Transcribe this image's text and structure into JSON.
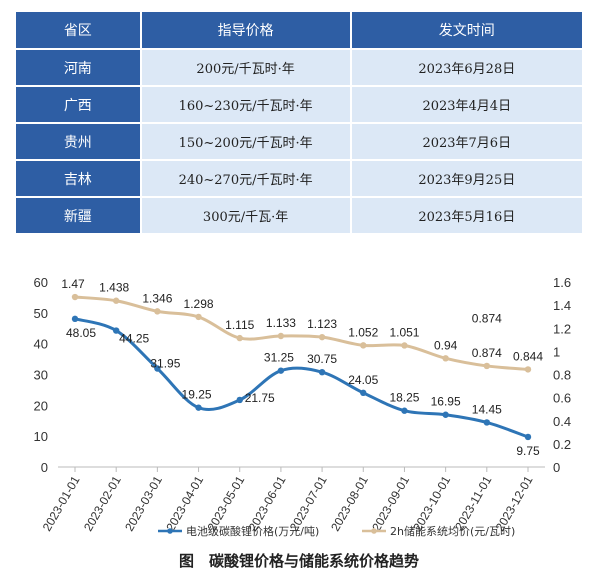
{
  "table": {
    "headers": [
      "省区",
      "指导价格",
      "发文时间"
    ],
    "rows": [
      {
        "province": "河南",
        "price": "200元/千瓦时·年",
        "date": "2023年6月28日"
      },
      {
        "province": "广西",
        "price": "160~230元/千瓦时·年",
        "date": "2023年4月4日"
      },
      {
        "province": "贵州",
        "price": "150~200元/千瓦时·年",
        "date": "2023年7月6日"
      },
      {
        "province": "吉林",
        "price": "240~270元/千瓦时·年",
        "date": "2023年9月25日"
      },
      {
        "province": "新疆",
        "price": "300元/千瓦·年",
        "date": "2023年5月16日"
      }
    ]
  },
  "chart_data": {
    "type": "line",
    "title": "",
    "x": [
      "2023-01-01",
      "2023-02-01",
      "2023-03-01",
      "2023-04-01",
      "2023-05-01",
      "2023-06-01",
      "2023-07-01",
      "2023-08-01",
      "2023-09-01",
      "2023-10-01",
      "2023-11-01",
      "2023-12-01"
    ],
    "y_left": {
      "range": [
        0,
        60
      ],
      "ticks": [
        "0",
        "10",
        "20",
        "30",
        "40",
        "50",
        "60"
      ]
    },
    "y_right": {
      "range": [
        0,
        1.6
      ],
      "ticks": [
        "0",
        "0.2",
        "0.4",
        "0.6",
        "0.8",
        "1",
        "1.2",
        "1.4",
        "1.6"
      ]
    },
    "series": [
      {
        "name": "电池级碳酸锂价格(万元/吨)",
        "axis": "left",
        "color": "#2e75b6",
        "values": [
          48.05,
          44.25,
          31.95,
          19.25,
          21.75,
          31.25,
          30.75,
          24.05,
          18.25,
          16.95,
          14.45,
          9.75
        ],
        "labels": [
          "48.05",
          "44.25",
          "31.95",
          "19.25",
          "21.75",
          "31.25",
          "30.75",
          "24.05",
          "18.25",
          "16.95",
          "14.45",
          "9.75"
        ]
      },
      {
        "name": "2h储能系统均价(元/瓦时)",
        "axis": "right",
        "color": "#d9bf9a",
        "values": [
          1.47,
          1.438,
          1.346,
          1.298,
          1.115,
          1.133,
          1.123,
          1.052,
          1.051,
          0.94,
          0.874,
          0.844
        ],
        "labels": [
          "1.47",
          "1.438",
          "1.346",
          "1.298",
          "1.115",
          "1.133",
          "1.123",
          "1.052",
          "1.051",
          "0.94",
          "0.874",
          "0.844"
        ],
        "extra_label": "0.874"
      }
    ],
    "legend_position": "bottom",
    "grid": false
  },
  "caption": "图　碳酸锂价格与储能系统价格趋势"
}
